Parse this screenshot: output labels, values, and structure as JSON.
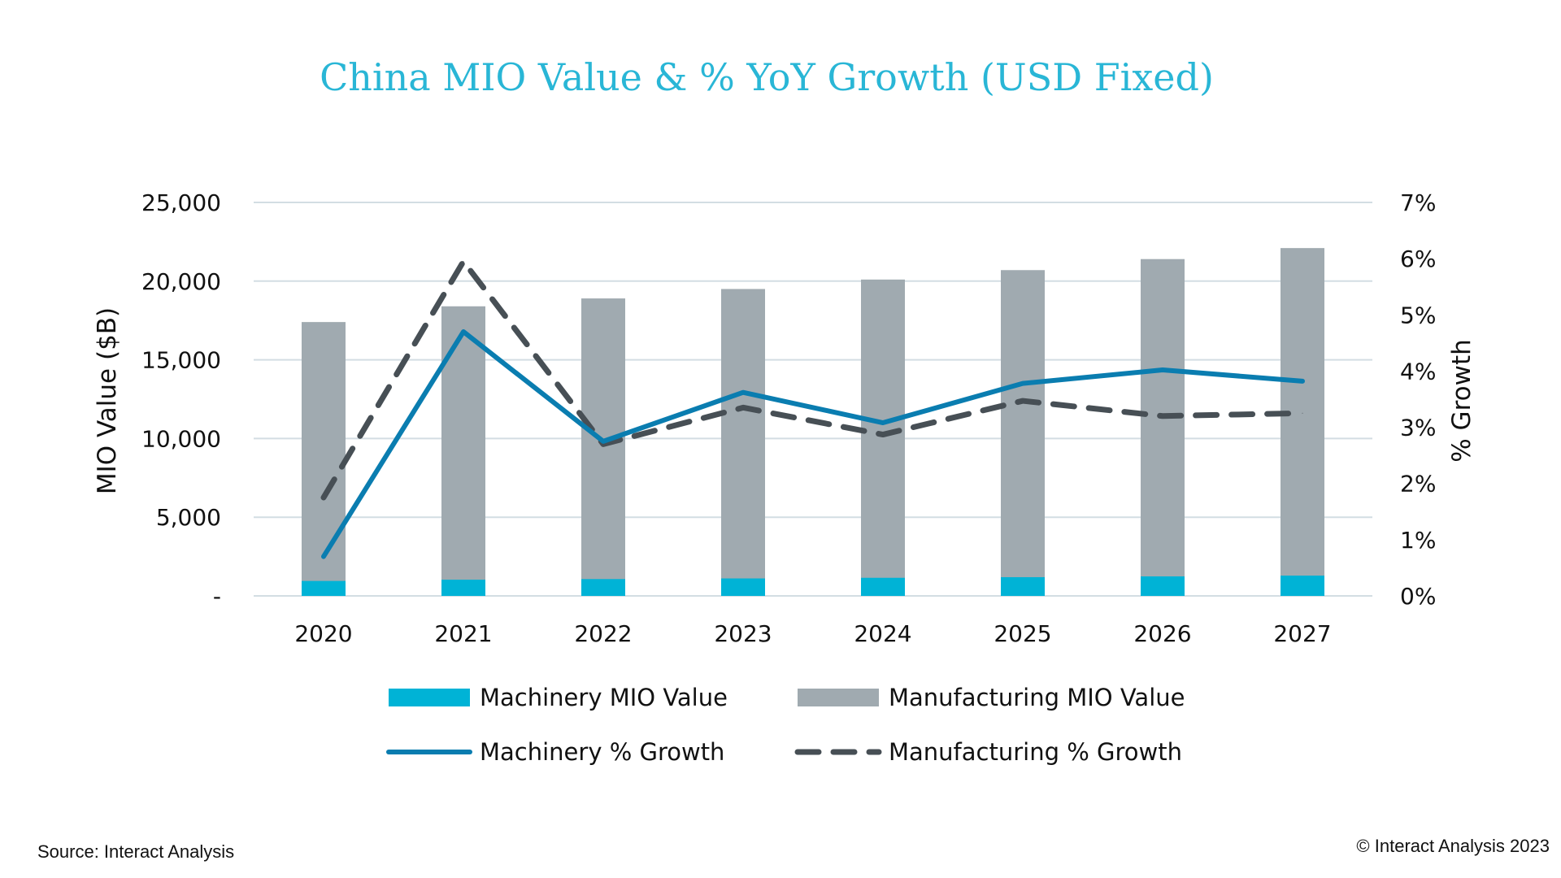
{
  "chart_data": {
    "type": "bar",
    "title": "China MIO Value & % YoY Growth (USD Fixed)",
    "categories": [
      "2020",
      "2021",
      "2022",
      "2023",
      "2024",
      "2025",
      "2026",
      "2027"
    ],
    "ylabel": "MIO Value ($B)",
    "y2label": "% Growth",
    "ylim": [
      0,
      25000
    ],
    "y2lim": [
      0,
      7
    ],
    "yticks": [
      "-",
      "5,000",
      "10,000",
      "15,000",
      "20,000",
      "25,000"
    ],
    "y2ticks": [
      "0%",
      "1%",
      "2%",
      "3%",
      "4%",
      "5%",
      "6%",
      "7%"
    ],
    "grid": true,
    "series": [
      {
        "name": "Machinery MIO Value",
        "kind": "bar",
        "axis": "left",
        "color": "#00b3d6",
        "values": [
          950,
          1030,
          1070,
          1110,
          1150,
          1190,
          1240,
          1290
        ]
      },
      {
        "name": "Manufacturing MIO Value",
        "kind": "bar",
        "axis": "left",
        "color": "#a0aab0",
        "values": [
          17400,
          18400,
          18900,
          19500,
          20100,
          20700,
          21400,
          22100
        ]
      },
      {
        "name": "Machinery % Growth",
        "kind": "line",
        "axis": "right",
        "color": "#0a7db0",
        "dash": false,
        "values": [
          0.7,
          4.7,
          2.75,
          3.62,
          3.08,
          3.78,
          4.02,
          3.82
        ]
      },
      {
        "name": "Manufacturing % Growth",
        "kind": "line",
        "axis": "right",
        "color": "#474f55",
        "dash": true,
        "values": [
          1.75,
          5.95,
          2.7,
          3.35,
          2.87,
          3.47,
          3.2,
          3.25
        ]
      }
    ]
  },
  "footer": {
    "source": "Source: Interact Analysis",
    "copyright": "© Interact Analysis 2023"
  }
}
